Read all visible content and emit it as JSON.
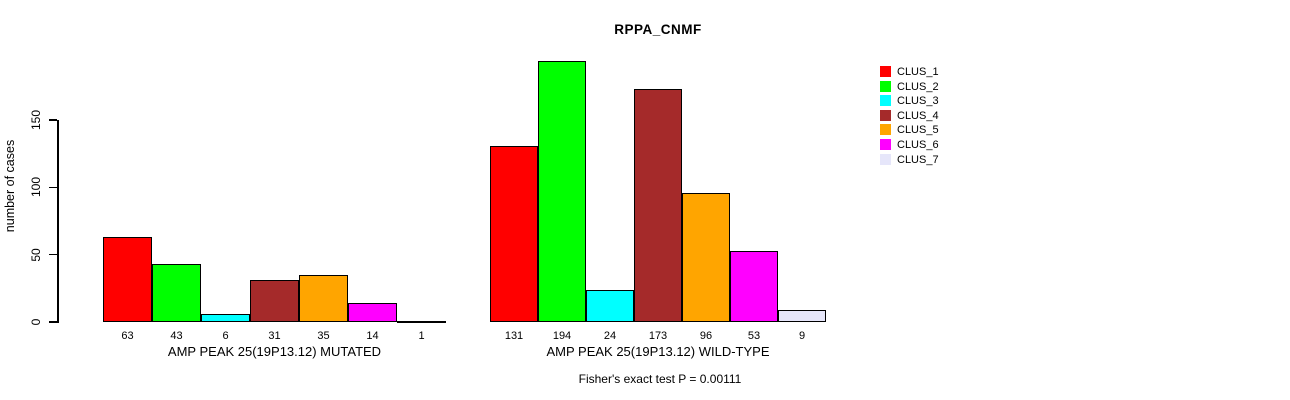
{
  "chart_data": {
    "type": "bar",
    "title": "RPPA_CNMF",
    "ylabel": "number of cases",
    "xlabel": "",
    "ylim": [
      0,
      150
    ],
    "yticks": [
      0,
      50,
      100,
      150
    ],
    "grid": false,
    "legend_position": "right",
    "legend": [
      {
        "label": "CLUS_1",
        "color": "#ff0000"
      },
      {
        "label": "CLUS_2",
        "color": "#00ff00"
      },
      {
        "label": "CLUS_3",
        "color": "#00ffff"
      },
      {
        "label": "CLUS_4",
        "color": "#a52a2a"
      },
      {
        "label": "CLUS_5",
        "color": "#ffa500"
      },
      {
        "label": "CLUS_6",
        "color": "#ff00ff"
      },
      {
        "label": "CLUS_7",
        "color": "#e6e6fa"
      }
    ],
    "groups": [
      {
        "label": "AMP PEAK 25(19P13.12) MUTATED",
        "categories": [
          "CLUS_1",
          "CLUS_2",
          "CLUS_3",
          "CLUS_4",
          "CLUS_5",
          "CLUS_6",
          "CLUS_7"
        ],
        "values": [
          63,
          43,
          6,
          31,
          35,
          14,
          1
        ]
      },
      {
        "label": "AMP PEAK 25(19P13.12) WILD-TYPE",
        "categories": [
          "CLUS_1",
          "CLUS_2",
          "CLUS_3",
          "CLUS_4",
          "CLUS_5",
          "CLUS_6",
          "CLUS_7"
        ],
        "values": [
          131,
          194,
          24,
          173,
          96,
          53,
          9
        ]
      }
    ],
    "annotation": "Fisher's exact test P = 0.00111"
  }
}
